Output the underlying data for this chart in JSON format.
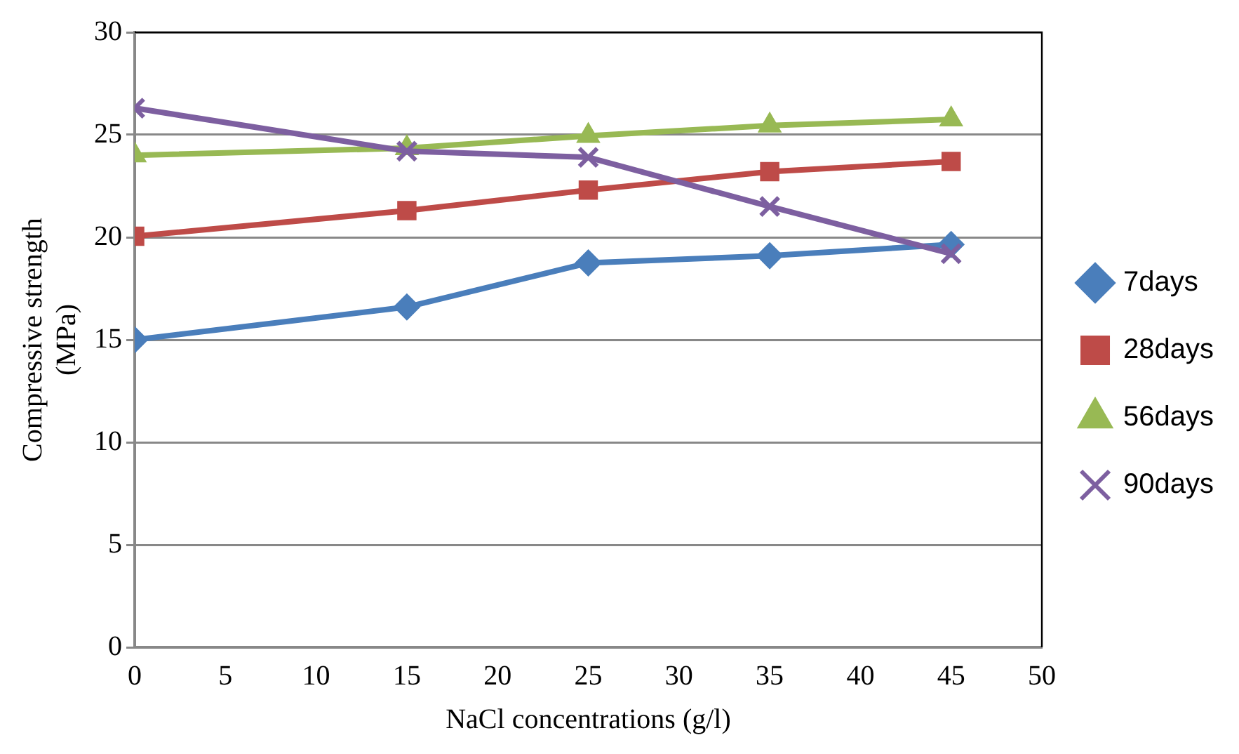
{
  "chart_data": {
    "type": "line",
    "xlabel": "NaCl concentrations (g/l)",
    "ylabel": "Compressive strength (MPa)",
    "x": [
      0,
      15,
      25,
      35,
      45
    ],
    "xlim": [
      0,
      50
    ],
    "xticks": [
      0,
      5,
      10,
      15,
      20,
      25,
      30,
      35,
      40,
      45,
      50
    ],
    "ylim": [
      0,
      30
    ],
    "yticks": [
      0,
      5,
      10,
      15,
      20,
      25,
      30
    ],
    "grid": "y",
    "legend": "right",
    "series": [
      {
        "name": "7days",
        "color": "#4a7ebb",
        "marker": "diamond",
        "values": [
          15,
          16.6,
          18.75,
          19.1,
          19.65
        ]
      },
      {
        "name": "28days",
        "color": "#be4b48",
        "marker": "square",
        "values": [
          20.05,
          21.3,
          22.3,
          23.2,
          23.7
        ]
      },
      {
        "name": "56days",
        "color": "#98b954",
        "marker": "triangle",
        "values": [
          24,
          24.35,
          24.95,
          25.45,
          25.75
        ]
      },
      {
        "name": "90days",
        "color": "#7d5fa0",
        "marker": "cross",
        "values": [
          26.3,
          24.2,
          23.9,
          21.5,
          19.2
        ]
      }
    ]
  }
}
